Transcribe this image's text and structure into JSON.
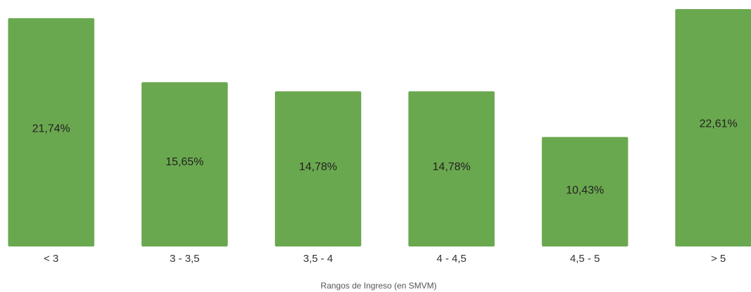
{
  "chart_data": {
    "type": "bar",
    "title": "",
    "xlabel": "Rangos de Ingreso (en SMVM)",
    "ylabel": "",
    "categories": [
      "< 3",
      "3 - 3,5",
      "3,5 - 4",
      "4 - 4,5",
      "4,5 - 5",
      "> 5"
    ],
    "values": [
      21.74,
      15.65,
      14.78,
      14.78,
      10.43,
      22.61
    ],
    "data_labels": [
      "21,74%",
      "15,65%",
      "14,78%",
      "14,78%",
      "10,43%",
      "22,61%"
    ],
    "ylim": [
      0,
      22.61
    ],
    "grid": false,
    "legend": "none",
    "bar_color": "#6aa84f"
  }
}
